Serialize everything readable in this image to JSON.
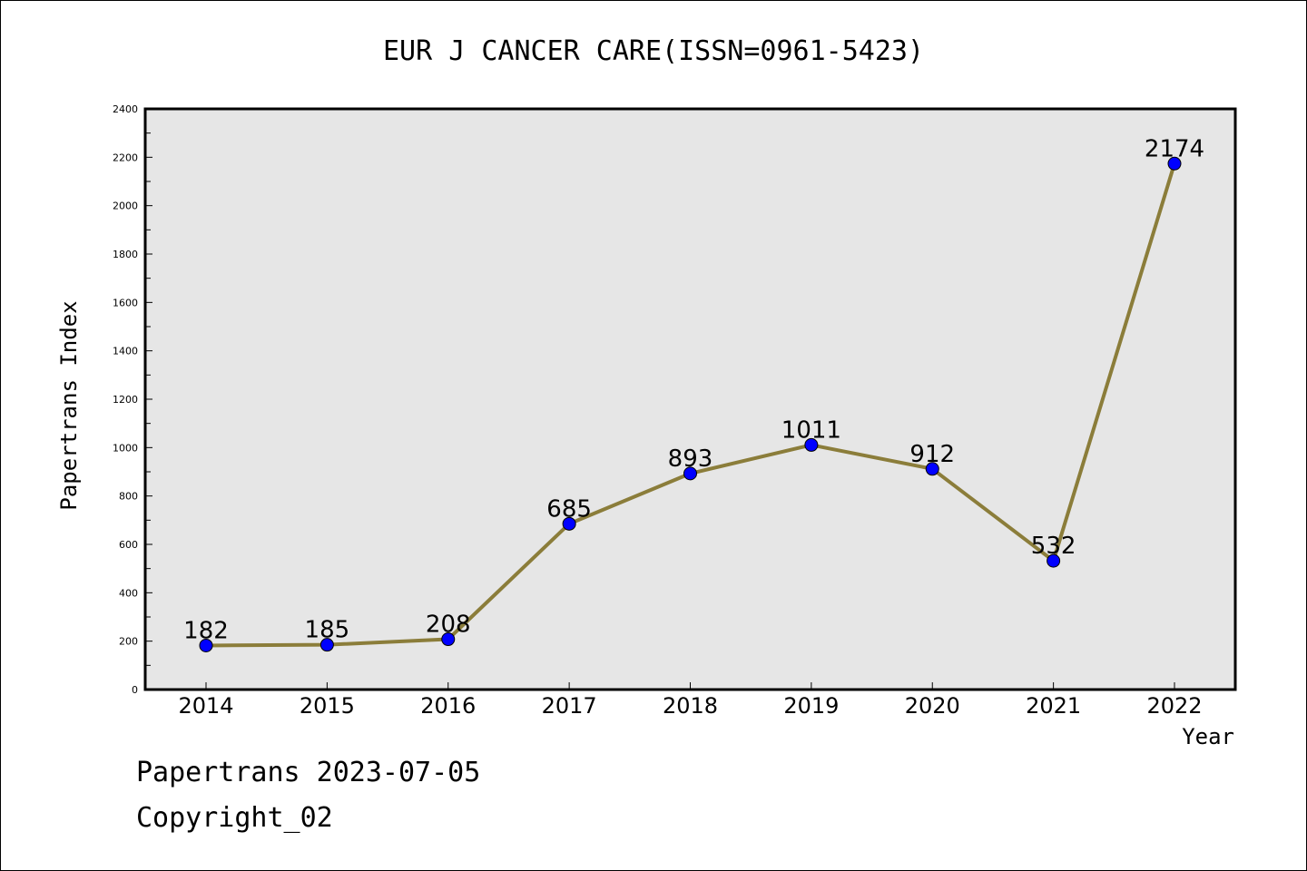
{
  "chart_data": {
    "type": "line",
    "title": "EUR J CANCER CARE(ISSN=0961-5423)",
    "xlabel": "Year",
    "ylabel": "Papertrans Index",
    "categories": [
      "2014",
      "2015",
      "2016",
      "2017",
      "2018",
      "2019",
      "2020",
      "2021",
      "2022"
    ],
    "values": [
      182,
      185,
      208,
      685,
      893,
      1011,
      912,
      532,
      2174
    ],
    "data_labels": [
      "182",
      "185",
      "208",
      "685",
      "893",
      "1011",
      "912",
      "532",
      "2174"
    ],
    "ylim": [
      0,
      2400
    ],
    "yticks": [
      0,
      200,
      400,
      600,
      800,
      1000,
      1200,
      1400,
      1600,
      1800,
      2000,
      2200,
      2400
    ],
    "grid": false,
    "line_color": "#8b7d3a",
    "marker_color": "#0000ff",
    "plot_background": "#e6e6e6"
  },
  "footer": {
    "line1": "Papertrans 2023-07-05",
    "line2": "Copyright_02"
  }
}
